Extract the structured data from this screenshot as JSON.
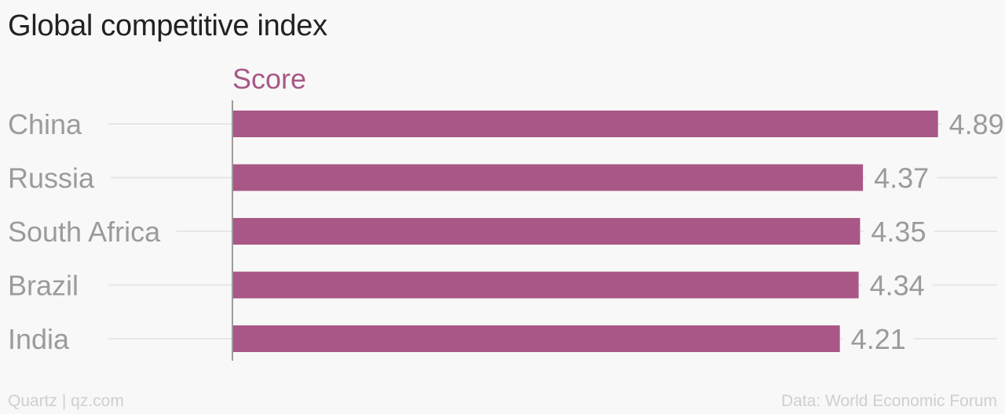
{
  "title": "Global competitive index",
  "footer": {
    "source_left": "Quartz | qz.com",
    "source_right": "Data: World Economic Forum"
  },
  "colors": {
    "bar": "#a95786",
    "series_label": "#a95786",
    "category_label": "#9b9b9b",
    "value_label": "#9b9b9b",
    "gridline": "#e6e6e6",
    "axis": "#9b9b9b"
  },
  "chart_data": {
    "type": "bar",
    "orientation": "horizontal",
    "categories": [
      "China",
      "Russia",
      "South Africa",
      "Brazil",
      "India"
    ],
    "series": [
      {
        "name": "Score",
        "values": [
          4.89,
          4.37,
          4.35,
          4.34,
          4.21
        ]
      }
    ],
    "data_labels": [
      "4.89",
      "4.37",
      "4.35",
      "4.34",
      "4.21"
    ],
    "xlim": [
      0,
      5.3
    ],
    "grid": true,
    "legend": "none"
  }
}
